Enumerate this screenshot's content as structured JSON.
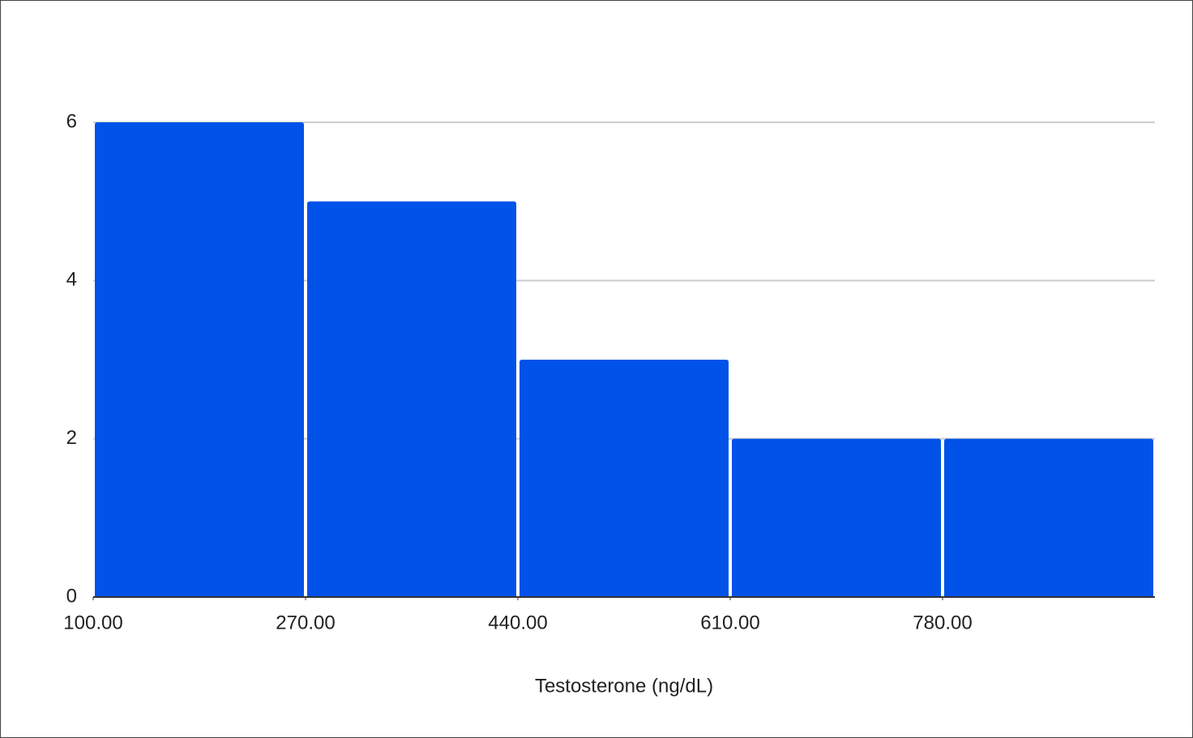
{
  "chart_data": {
    "type": "histogram",
    "x_label": "Testosterone (ng/dL)",
    "bins": [
      100,
      270,
      440,
      610,
      780,
      950
    ],
    "counts": [
      6,
      5,
      3,
      2,
      2
    ],
    "color": "#0052e9",
    "xlim": [
      100,
      950
    ],
    "xticks": [
      {
        "value": 100,
        "label": "100.00"
      },
      {
        "value": 270,
        "label": "270.00"
      },
      {
        "value": 440,
        "label": "440.00"
      },
      {
        "value": 610,
        "label": "610.00"
      },
      {
        "value": 780,
        "label": "780.00"
      }
    ],
    "ylim": [
      0,
      6
    ],
    "yticks": [
      0,
      2,
      4,
      6
    ],
    "grid": true
  }
}
